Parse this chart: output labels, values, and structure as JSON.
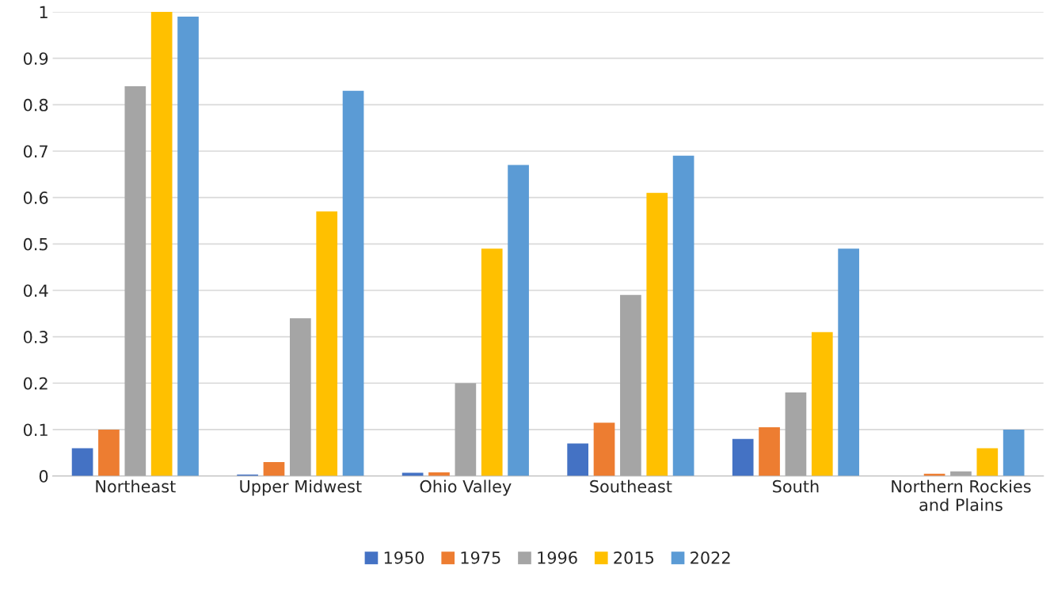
{
  "chart_data": {
    "type": "bar",
    "categories": [
      "Northeast",
      "Upper Midwest",
      "Ohio Valley",
      "Southeast",
      "South",
      "Northern Rockies\nand Plains"
    ],
    "series": [
      {
        "name": "1950",
        "color": "#4472c4",
        "values": [
          0.06,
          0.003,
          0.007,
          0.07,
          0.08,
          null
        ]
      },
      {
        "name": "1975",
        "color": "#ed7d31",
        "values": [
          0.1,
          0.03,
          0.008,
          0.115,
          0.105,
          0.005
        ]
      },
      {
        "name": "1996",
        "color": "#a5a5a5",
        "values": [
          0.84,
          0.34,
          0.2,
          0.39,
          0.18,
          0.01
        ]
      },
      {
        "name": "2015",
        "color": "#ffc000",
        "values": [
          1.0,
          0.57,
          0.49,
          0.61,
          0.31,
          0.06
        ]
      },
      {
        "name": "2022",
        "color": "#5b9bd5",
        "values": [
          0.99,
          0.83,
          0.67,
          0.69,
          0.49,
          0.1
        ]
      }
    ],
    "ylim": [
      0,
      1
    ],
    "yticks": [
      0,
      0.1,
      0.2,
      0.3,
      0.4,
      0.5,
      0.6,
      0.7,
      0.8,
      0.9,
      1
    ],
    "grid": "y",
    "legend": "bottom"
  }
}
